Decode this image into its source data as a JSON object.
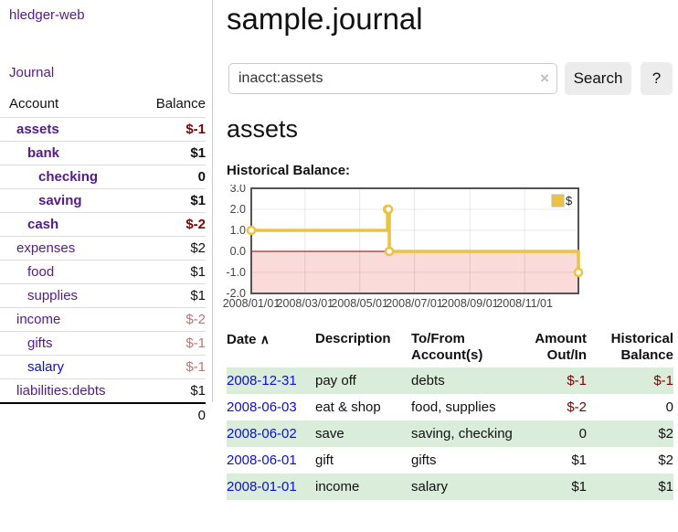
{
  "sidebar": {
    "brand": "hledger-web",
    "nav_journal": "Journal",
    "table": {
      "col_account": "Account",
      "col_balance": "Balance"
    },
    "accounts": [
      {
        "name": "assets",
        "depth": 1,
        "bold": true,
        "name_color": "purple",
        "balance": "$-1",
        "balance_color": "c-dark-red"
      },
      {
        "name": "bank",
        "depth": 2,
        "bold": true,
        "name_color": "purple",
        "balance": "$1",
        "balance_color": "c-black"
      },
      {
        "name": "checking",
        "depth": 3,
        "bold": true,
        "name_color": "purple",
        "balance": "0",
        "balance_color": "c-black"
      },
      {
        "name": "saving",
        "depth": 3,
        "bold": true,
        "name_color": "purple",
        "balance": "$1",
        "balance_color": "c-black"
      },
      {
        "name": "cash",
        "depth": 2,
        "bold": true,
        "name_color": "purple",
        "balance": "$-2",
        "balance_color": "c-dark-red"
      },
      {
        "name": "expenses",
        "depth": 1,
        "bold": false,
        "name_color": "purple",
        "balance": "$2",
        "balance_color": "c-black"
      },
      {
        "name": "food",
        "depth": 2,
        "bold": false,
        "name_color": "purple",
        "balance": "$1",
        "balance_color": "c-black"
      },
      {
        "name": "supplies",
        "depth": 2,
        "bold": false,
        "name_color": "purple",
        "balance": "$1",
        "balance_color": "c-black"
      },
      {
        "name": "income",
        "depth": 1,
        "bold": false,
        "name_color": "purple",
        "balance": "$-2",
        "balance_color": "c-faded-red"
      },
      {
        "name": "gifts",
        "depth": 2,
        "bold": false,
        "name_color": "purple",
        "balance": "$-1",
        "balance_color": "c-faded-red"
      },
      {
        "name": "salary",
        "depth": 2,
        "bold": false,
        "name_color": "blue",
        "balance": "$-1",
        "balance_color": "c-faded-red"
      },
      {
        "name": "liabilities:debts",
        "depth": 1,
        "bold": false,
        "name_color": "purple",
        "balance": "$1",
        "balance_color": "c-black"
      }
    ],
    "total": "0"
  },
  "main": {
    "title": "sample.journal",
    "search": {
      "value": "inacct:assets",
      "clear_icon": "×",
      "button_label": "Search",
      "help_label": "?"
    },
    "account_heading": "assets",
    "chart_label": "Historical Balance:",
    "register": {
      "sort_icon": "∧",
      "headers": [
        {
          "line1": "Date",
          "line2": "",
          "align": "left",
          "sortable": true
        },
        {
          "line1": "Description",
          "line2": "",
          "align": "left"
        },
        {
          "line1": "To/From",
          "line2": "Account(s)",
          "align": "left"
        },
        {
          "line1": "Amount",
          "line2": "Out/In",
          "align": "right"
        },
        {
          "line1": "Historical",
          "line2": "Balance",
          "align": "right"
        }
      ],
      "rows": [
        {
          "date": "2008-12-31",
          "description": "pay off",
          "accounts": "debts",
          "amount": "$-1",
          "amount_color": "c-dark-red",
          "balance": "$-1",
          "balance_color": "c-dark-red",
          "shade": true
        },
        {
          "date": "2008-06-03",
          "description": "eat & shop",
          "accounts": "food, supplies",
          "amount": "$-2",
          "amount_color": "c-dark-red",
          "balance": "0",
          "balance_color": "c-black",
          "shade": false
        },
        {
          "date": "2008-06-02",
          "description": "save",
          "accounts": "saving, checking",
          "amount": "0",
          "amount_color": "c-black",
          "balance": "$2",
          "balance_color": "c-black",
          "shade": true
        },
        {
          "date": "2008-06-01",
          "description": "gift",
          "accounts": "gifts",
          "amount": "$1",
          "amount_color": "c-black",
          "balance": "$2",
          "balance_color": "c-black",
          "shade": false
        },
        {
          "date": "2008-01-01",
          "description": "income",
          "accounts": "salary",
          "amount": "$1",
          "amount_color": "c-black",
          "balance": "$1",
          "balance_color": "c-black",
          "shade": true
        }
      ]
    }
  },
  "chart_data": {
    "type": "line",
    "step": true,
    "title": "Historical Balance",
    "series": [
      {
        "name": "$",
        "color": "#edc240",
        "points": [
          [
            "2008-01-01",
            1
          ],
          [
            "2008-06-01",
            2
          ],
          [
            "2008-06-02",
            2
          ],
          [
            "2008-06-03",
            0
          ],
          [
            "2008-12-31",
            -1
          ]
        ]
      }
    ],
    "xrange": [
      "2008-01-01",
      "2008-12-31"
    ],
    "ylim": [
      -2,
      3
    ],
    "ytick_values": [
      3,
      2,
      1,
      0,
      -1,
      -2
    ],
    "ytick_labels": [
      "3.0",
      "2.0",
      "1.0",
      "0.0",
      "-1.0",
      "-2.0"
    ],
    "xticks": [
      "2008/01/01",
      "2008/03/01",
      "2008/05/01",
      "2008/07/01",
      "2008/09/01",
      "2008/11/01"
    ],
    "grid": true,
    "legend_position": "top-right",
    "negative_region_color": "#fbdada",
    "zero_line_color": "#8b0000",
    "border_color": "#545454",
    "tick_label_color": "#444444"
  },
  "colors": {
    "link_purple": "#551a8b",
    "link_blue": "#0d0de0",
    "negative_strong": "#7e0000",
    "negative_faded": "#bf7373",
    "row_stripe_green": "#daecda",
    "series_gold": "#edc240"
  }
}
